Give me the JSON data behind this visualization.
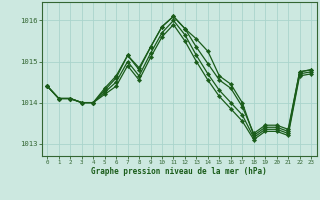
{
  "x": [
    0,
    1,
    2,
    3,
    4,
    5,
    6,
    7,
    8,
    9,
    10,
    11,
    12,
    13,
    14,
    15,
    16,
    17,
    18,
    19,
    20,
    21,
    22,
    23
  ],
  "y_main": [
    1014.4,
    1014.1,
    1014.1,
    1014.0,
    1014.0,
    1014.3,
    1014.6,
    1015.15,
    1014.8,
    1015.35,
    1015.85,
    1016.1,
    1015.8,
    1015.55,
    1015.25,
    1014.65,
    1014.45,
    1014.0,
    1013.2,
    1013.4,
    1013.4,
    1013.3,
    1014.75,
    1014.8
  ],
  "y_upper": [
    1014.4,
    1014.1,
    1014.1,
    1014.0,
    1014.0,
    1014.35,
    1014.65,
    1015.15,
    1014.85,
    1015.35,
    1015.85,
    1016.1,
    1015.8,
    1015.35,
    1014.95,
    1014.55,
    1014.35,
    1013.9,
    1013.25,
    1013.45,
    1013.45,
    1013.35,
    1014.75,
    1014.8
  ],
  "y_lower1": [
    1014.4,
    1014.1,
    1014.1,
    1014.0,
    1014.0,
    1014.25,
    1014.5,
    1015.0,
    1014.65,
    1015.2,
    1015.7,
    1016.0,
    1015.65,
    1015.15,
    1014.7,
    1014.3,
    1014.0,
    1013.7,
    1013.15,
    1013.35,
    1013.35,
    1013.25,
    1014.7,
    1014.75
  ],
  "y_lower2": [
    1014.4,
    1014.1,
    1014.1,
    1014.0,
    1014.0,
    1014.2,
    1014.4,
    1014.9,
    1014.55,
    1015.1,
    1015.6,
    1015.9,
    1015.5,
    1015.0,
    1014.55,
    1014.15,
    1013.85,
    1013.55,
    1013.1,
    1013.3,
    1013.3,
    1013.2,
    1014.65,
    1014.7
  ],
  "background_color": "#cce8e0",
  "grid_color": "#aad4cc",
  "line_color": "#1a5c1a",
  "marker_color": "#1a5c1a",
  "xlabel": "Graphe pression niveau de la mer (hPa)",
  "ylabel_ticks": [
    1013,
    1014,
    1015,
    1016
  ],
  "xlim": [
    -0.5,
    23.5
  ],
  "ylim": [
    1012.7,
    1016.45
  ],
  "axis_color": "#336633",
  "tick_label_color": "#1a5c1a"
}
